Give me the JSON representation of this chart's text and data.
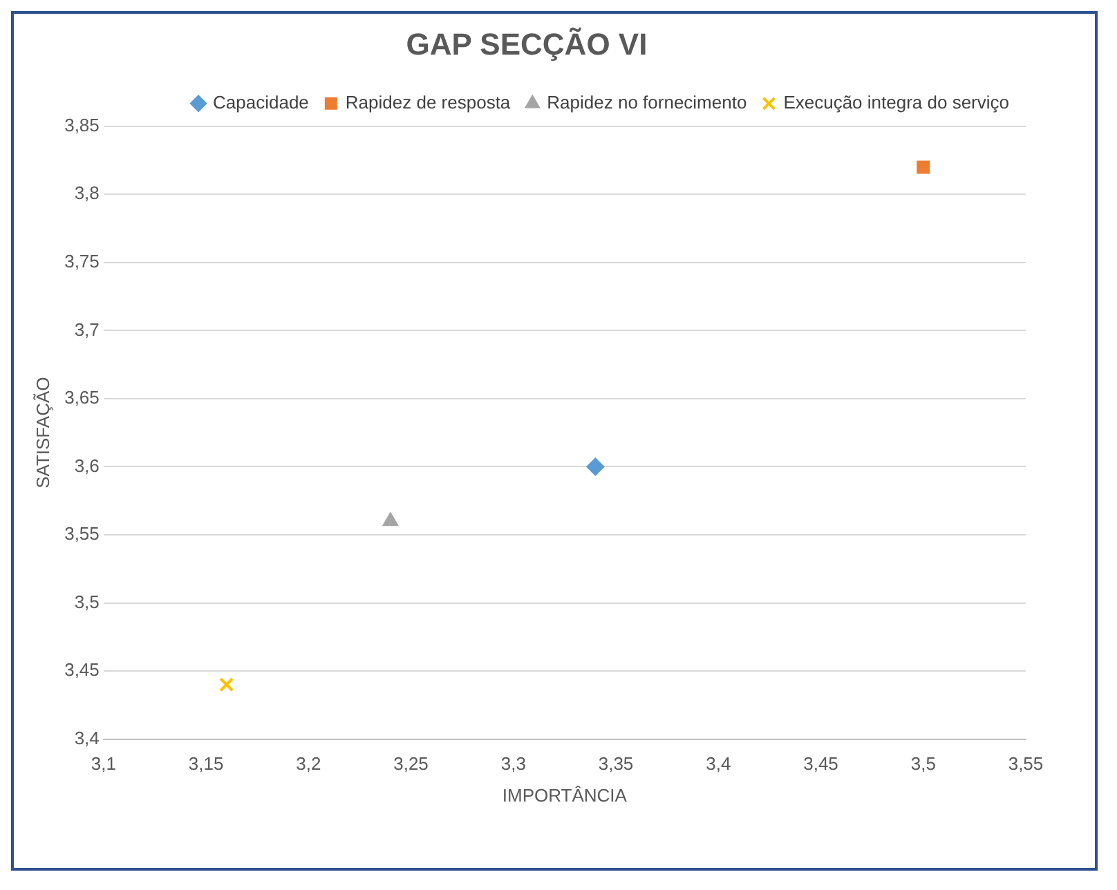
{
  "chart_data": {
    "type": "scatter",
    "title": "GAP SECÇÃO VI",
    "xlabel": "IMPORTÂNCIA",
    "ylabel": "SATISFAÇÃO",
    "series": [
      {
        "name": "Capacidade",
        "color": "#5b9bd5",
        "marker": "diamond",
        "x": [
          3.34
        ],
        "values": [
          3.6
        ]
      },
      {
        "name": "Rapidez de resposta",
        "color": "#ed7d31",
        "marker": "square",
        "x": [
          3.5
        ],
        "values": [
          3.82
        ]
      },
      {
        "name": "Rapidez no fornecimento",
        "color": "#a5a5a5",
        "marker": "triangle",
        "x": [
          3.24
        ],
        "values": [
          3.56
        ]
      },
      {
        "name": "Execução integra do serviço",
        "color": "#ffc000",
        "marker": "cross",
        "x": [
          3.16
        ],
        "values": [
          3.44
        ]
      }
    ],
    "xlim": [
      3.1,
      3.55
    ],
    "xticks": [
      {
        "value": 3.1,
        "label": "3,1"
      },
      {
        "value": 3.15,
        "label": "3,15"
      },
      {
        "value": 3.2,
        "label": "3,2"
      },
      {
        "value": 3.25,
        "label": "3,25"
      },
      {
        "value": 3.3,
        "label": "3,3"
      },
      {
        "value": 3.35,
        "label": "3,35"
      },
      {
        "value": 3.4,
        "label": "3,4"
      },
      {
        "value": 3.45,
        "label": "3,45"
      },
      {
        "value": 3.5,
        "label": "3,5"
      },
      {
        "value": 3.55,
        "label": "3,55"
      }
    ],
    "ylim": [
      3.4,
      3.85
    ],
    "yticks": [
      {
        "value": 3.4,
        "label": "3,4"
      },
      {
        "value": 3.45,
        "label": "3,45"
      },
      {
        "value": 3.5,
        "label": "3,5"
      },
      {
        "value": 3.55,
        "label": "3,55"
      },
      {
        "value": 3.6,
        "label": "3,6"
      },
      {
        "value": 3.65,
        "label": "3,65"
      },
      {
        "value": 3.7,
        "label": "3,7"
      },
      {
        "value": 3.75,
        "label": "3,75"
      },
      {
        "value": 3.8,
        "label": "3,8"
      },
      {
        "value": 3.85,
        "label": "3,85"
      }
    ],
    "grid": "y",
    "legend": "top right"
  }
}
